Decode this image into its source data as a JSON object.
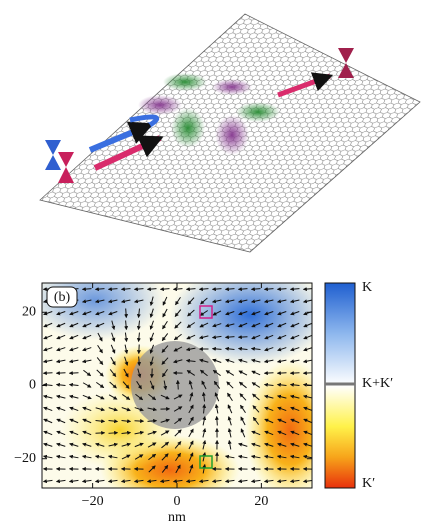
{
  "chart_data": {
    "type": "heatmap",
    "panel_label": "(b)",
    "xlabel": "nm",
    "xlim": [
      -32,
      32
    ],
    "ylim": [
      -28,
      28
    ],
    "xticks": [
      {
        "value": -20,
        "label": "−20"
      },
      0,
      20
    ],
    "yticks": [
      20,
      0,
      {
        "value": -20,
        "label": "−20"
      }
    ],
    "colorbar_labels": [
      "K",
      "K+K′",
      "K′"
    ]
  }
}
